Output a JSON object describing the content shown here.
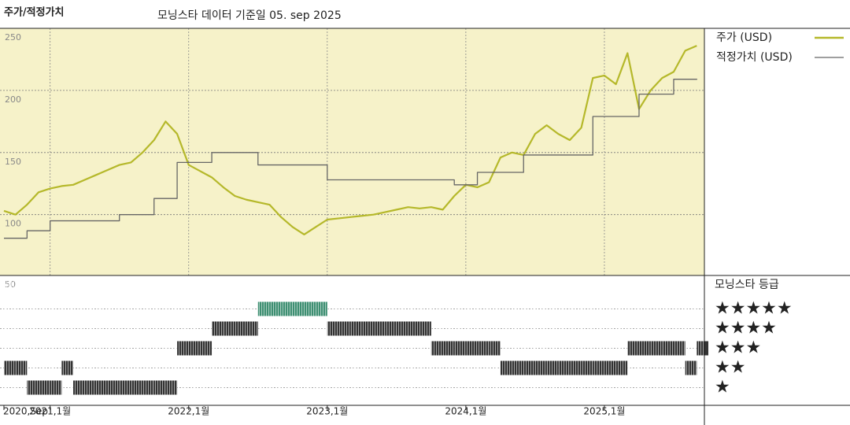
{
  "chart_data": [
    {
      "type": "line",
      "title": "주가/적정가치",
      "subtitle": "모닝스타 데이터 기준일 05. sep 2025",
      "x": [
        "2020-09",
        "2020-10",
        "2020-11",
        "2020-12",
        "2021-01",
        "2021-02",
        "2021-03",
        "2021-04",
        "2021-05",
        "2021-06",
        "2021-07",
        "2021-08",
        "2021-09",
        "2021-10",
        "2021-11",
        "2021-12",
        "2022-01",
        "2022-02",
        "2022-03",
        "2022-04",
        "2022-05",
        "2022-06",
        "2022-07",
        "2022-08",
        "2022-09",
        "2022-10",
        "2022-11",
        "2022-12",
        "2023-01",
        "2023-02",
        "2023-03",
        "2023-04",
        "2023-05",
        "2023-06",
        "2023-07",
        "2023-08",
        "2023-09",
        "2023-10",
        "2023-11",
        "2023-12",
        "2024-01",
        "2024-02",
        "2024-03",
        "2024-04",
        "2024-05",
        "2024-06",
        "2024-07",
        "2024-08",
        "2024-09",
        "2024-10",
        "2024-11",
        "2024-12",
        "2025-01",
        "2025-02",
        "2025-03",
        "2025-04",
        "2025-05",
        "2025-06",
        "2025-07",
        "2025-08",
        "2025-09"
      ],
      "series": [
        {
          "name": "주가 (USD)",
          "color": "#b5b82a",
          "style": "line",
          "values": [
            103,
            100,
            108,
            118,
            121,
            123,
            124,
            128,
            132,
            136,
            140,
            142,
            150,
            160,
            175,
            165,
            140,
            135,
            130,
            122,
            115,
            112,
            110,
            108,
            98,
            90,
            84,
            90,
            96,
            97,
            98,
            99,
            100,
            102,
            104,
            106,
            105,
            106,
            104,
            115,
            124,
            122,
            126,
            146,
            150,
            148,
            165,
            172,
            165,
            160,
            170,
            210,
            212,
            205,
            230,
            185,
            200,
            210,
            215,
            232,
            236
          ]
        },
        {
          "name": "적정가치 (USD)",
          "color": "#666666",
          "style": "step",
          "values": [
            81,
            81,
            87,
            87,
            95,
            95,
            95,
            95,
            95,
            95,
            100,
            100,
            100,
            113,
            113,
            142,
            142,
            142,
            150,
            150,
            150,
            150,
            140,
            140,
            140,
            140,
            140,
            140,
            128,
            128,
            128,
            128,
            128,
            128,
            128,
            128,
            128,
            128,
            128,
            124,
            124,
            134,
            134,
            134,
            134,
            148,
            148,
            148,
            148,
            148,
            148,
            179,
            179,
            179,
            179,
            197,
            197,
            197,
            209,
            209,
            209
          ]
        }
      ],
      "xlim": [
        "2020-09",
        "2025-10"
      ],
      "xticks": [
        {
          "value": "2020-09",
          "label": "2020,Sep"
        },
        {
          "value": "2021-01",
          "label": "2021,1월"
        },
        {
          "value": "2022-01",
          "label": "2022,1월"
        },
        {
          "value": "2023-01",
          "label": "2023,1월"
        },
        {
          "value": "2024-01",
          "label": "2024,1월"
        },
        {
          "value": "2025-01",
          "label": "2025,1월"
        }
      ],
      "ylim": [
        51,
        250
      ],
      "yticks": [
        100,
        150,
        200,
        250
      ],
      "grid": true,
      "background": "#f6f2c9"
    },
    {
      "type": "rating",
      "title": "모닝스타 등급",
      "corner_label": "50",
      "levels": [
        "★",
        "★★",
        "★★★",
        "★★★★",
        "★★★★★"
      ],
      "values": [
        2,
        2,
        1,
        1,
        1,
        2,
        1,
        1,
        1,
        1,
        1,
        1,
        1,
        1,
        1,
        3,
        3,
        3,
        4,
        4,
        4,
        4,
        5,
        5,
        5,
        5,
        5,
        5,
        4,
        4,
        4,
        4,
        4,
        4,
        4,
        4,
        4,
        3,
        3,
        3,
        3,
        3,
        3,
        2,
        2,
        2,
        2,
        2,
        2,
        2,
        2,
        2,
        2,
        2,
        3,
        3,
        3,
        3,
        3,
        2,
        3
      ],
      "ylim": [
        0.1,
        6.7
      ],
      "color": "#333333",
      "top_color": "#3e8f72"
    }
  ]
}
